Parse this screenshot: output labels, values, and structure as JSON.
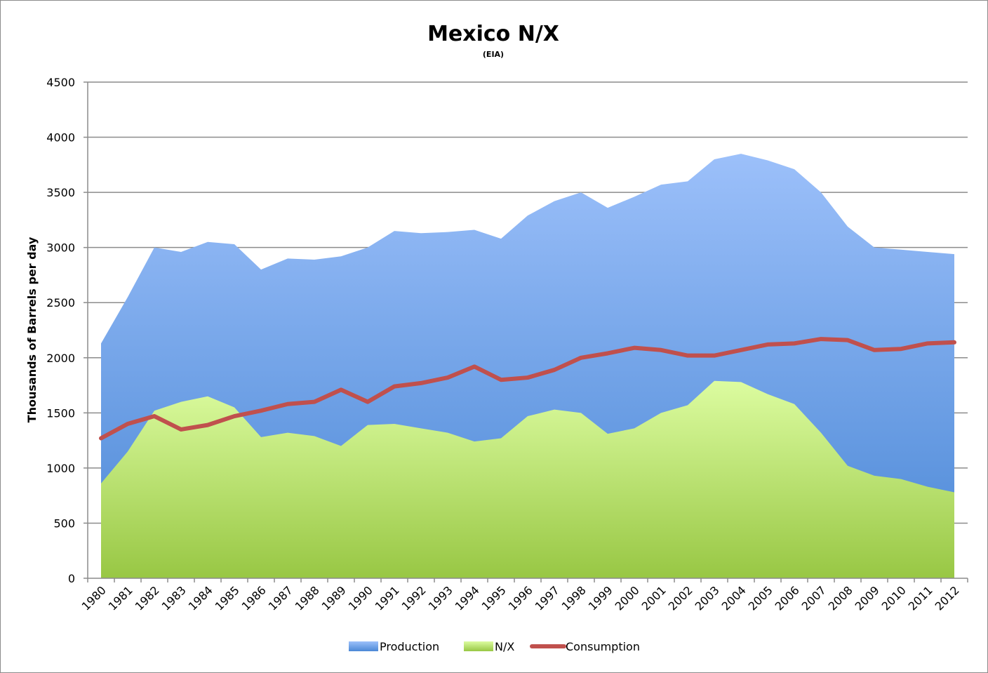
{
  "chart_data": {
    "type": "area",
    "title": "Mexico N/X",
    "subtitle": "(EIA)",
    "xlabel": "",
    "ylabel": "Thousands of Barrels per day",
    "ylim": [
      0,
      4500
    ],
    "yticks": [
      "0",
      "500",
      "1000",
      "1500",
      "2000",
      "2500",
      "3000",
      "3500",
      "4000",
      "4500"
    ],
    "categories": [
      "1980",
      "1981",
      "1982",
      "1983",
      "1984",
      "1985",
      "1986",
      "1987",
      "1988",
      "1989",
      "1990",
      "1991",
      "1992",
      "1993",
      "1994",
      "1995",
      "1996",
      "1997",
      "1998",
      "1999",
      "2000",
      "2001",
      "2002",
      "2003",
      "2004",
      "2005",
      "2006",
      "2007",
      "2008",
      "2009",
      "2010",
      "2011",
      "2012"
    ],
    "grid": true,
    "legend_position": "bottom",
    "series": [
      {
        "name": "Production",
        "kind": "area",
        "color_top": "#9cc0fa",
        "color_bottom": "#4b88d6",
        "values": [
          2130,
          2550,
          3000,
          2960,
          3050,
          3030,
          2800,
          2900,
          2890,
          2920,
          3000,
          3150,
          3130,
          3140,
          3160,
          3080,
          3290,
          3420,
          3500,
          3360,
          3460,
          3570,
          3600,
          3800,
          3850,
          3790,
          3710,
          3500,
          3190,
          3000,
          2980,
          2960,
          2940
        ]
      },
      {
        "name": "N/X",
        "kind": "area",
        "color_top": "#dcfca0",
        "color_bottom": "#98c744",
        "values": [
          860,
          1150,
          1520,
          1600,
          1650,
          1550,
          1280,
          1320,
          1290,
          1200,
          1390,
          1400,
          1360,
          1320,
          1240,
          1270,
          1470,
          1530,
          1500,
          1310,
          1360,
          1500,
          1570,
          1790,
          1780,
          1670,
          1580,
          1320,
          1020,
          930,
          900,
          830,
          780
        ]
      },
      {
        "name": "Consumption",
        "kind": "line",
        "color": "#c0504d",
        "values": [
          1270,
          1400,
          1470,
          1350,
          1390,
          1470,
          1520,
          1580,
          1600,
          1710,
          1600,
          1740,
          1770,
          1820,
          1920,
          1800,
          1820,
          1890,
          2000,
          2040,
          2090,
          2070,
          2020,
          2020,
          2070,
          2120,
          2130,
          2170,
          2160,
          2070,
          2080,
          2130,
          2140
        ]
      }
    ]
  }
}
